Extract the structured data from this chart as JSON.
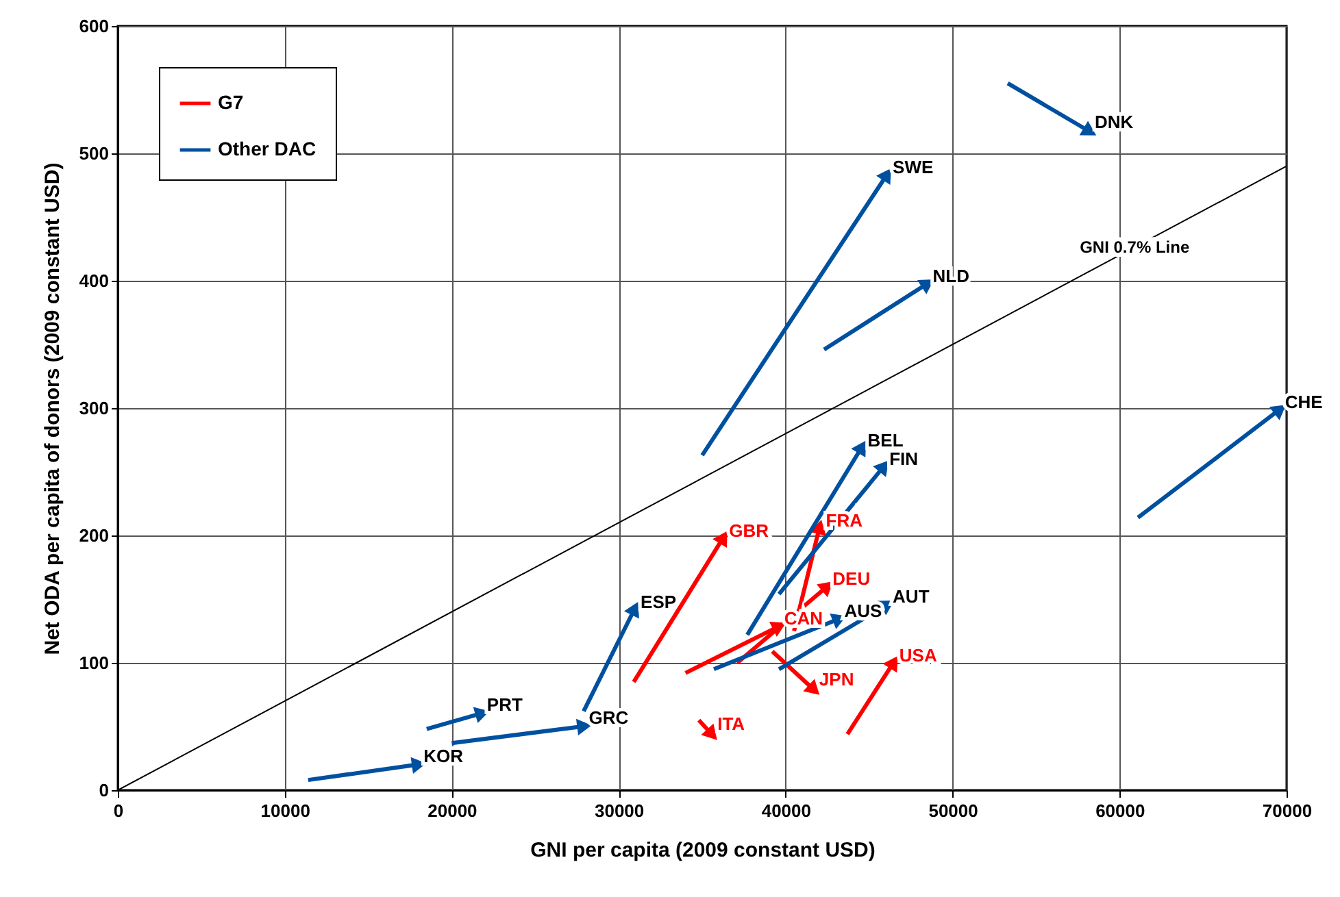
{
  "chart_data": {
    "type": "line",
    "xlabel": "GNI per capita (2009 constant USD)",
    "ylabel": "Net ODA per capita of donors (2009 constant USD)",
    "xlim": [
      0,
      70000
    ],
    "xticks": [
      0,
      10000,
      20000,
      30000,
      40000,
      50000,
      60000,
      70000
    ],
    "ylim": [
      0,
      600
    ],
    "yticks": [
      0,
      100,
      200,
      300,
      400,
      500,
      600
    ],
    "grid": true,
    "legend": "top left",
    "series": [
      {
        "name": "G7",
        "color": "#ff0000",
        "marker": "triangle",
        "x": [
          30900,
          36200,
          null,
          40500,
          42000,
          null,
          34000,
          39500,
          null,
          37100,
          42400,
          null,
          39200,
          41600,
          null,
          43700,
          46400,
          null,
          34800,
          35500
        ],
        "values": [
          85,
          197,
          null,
          125,
          205,
          null,
          92,
          128,
          null,
          100,
          159,
          null,
          109,
          80,
          null,
          44,
          99,
          null,
          55,
          45
        ]
      },
      {
        "name": "Other DAC",
        "color": "#0050a0",
        "marker": "triangle",
        "x": [
          11400,
          17900,
          null,
          18500,
          21700,
          null,
          20000,
          27800,
          null,
          27900,
          30900,
          null,
          35000,
          46000,
          null,
          42300,
          48400,
          null,
          53300,
          58100,
          null,
          61100,
          69500,
          null,
          37700,
          44500,
          null,
          39600,
          45800,
          null,
          35700,
          43100,
          null,
          39600,
          46000
        ],
        "values": [
          8,
          20,
          null,
          48,
          60,
          null,
          37,
          50,
          null,
          62,
          141,
          null,
          263,
          482,
          null,
          346,
          397,
          null,
          555,
          518,
          null,
          214,
          298,
          null,
          122,
          268,
          null,
          154,
          253,
          null,
          95,
          134,
          null,
          95,
          145
        ]
      },
      {
        "color": "#000000",
        "x": [
          0,
          70000
        ],
        "values": [
          0,
          490
        ]
      }
    ],
    "annotations": [
      {
        "text": "GBR",
        "x": 36200,
        "y": 197
      },
      {
        "text": "FRA",
        "x": 42000,
        "y": 205
      },
      {
        "text": "CAN",
        "x": 39500,
        "y": 128
      },
      {
        "text": "DEU",
        "x": 42400,
        "y": 159
      },
      {
        "text": "JPN",
        "x": 41600,
        "y": 80
      },
      {
        "text": "USA",
        "x": 46400,
        "y": 99
      },
      {
        "text": "ITA",
        "x": 35500,
        "y": 45
      },
      {
        "text": "KOR",
        "x": 17900,
        "y": 20
      },
      {
        "text": "PRT",
        "x": 21700,
        "y": 60
      },
      {
        "text": "GRC",
        "x": 27800,
        "y": 50
      },
      {
        "text": "ESP",
        "x": 30900,
        "y": 141
      },
      {
        "text": "SWE",
        "x": 46000,
        "y": 482
      },
      {
        "text": "NLD",
        "x": 48400,
        "y": 397
      },
      {
        "text": "DNK",
        "x": 58100,
        "y": 518
      },
      {
        "text": "CHE",
        "x": 69500,
        "y": 298
      },
      {
        "text": "BEL",
        "x": 44500,
        "y": 268
      },
      {
        "text": "FIN",
        "x": 45800,
        "y": 253
      },
      {
        "text": "AUS",
        "x": 43100,
        "y": 134
      },
      {
        "text": "AUT",
        "x": 46000,
        "y": 145
      },
      "GNI 0.7% Line"
    ]
  }
}
